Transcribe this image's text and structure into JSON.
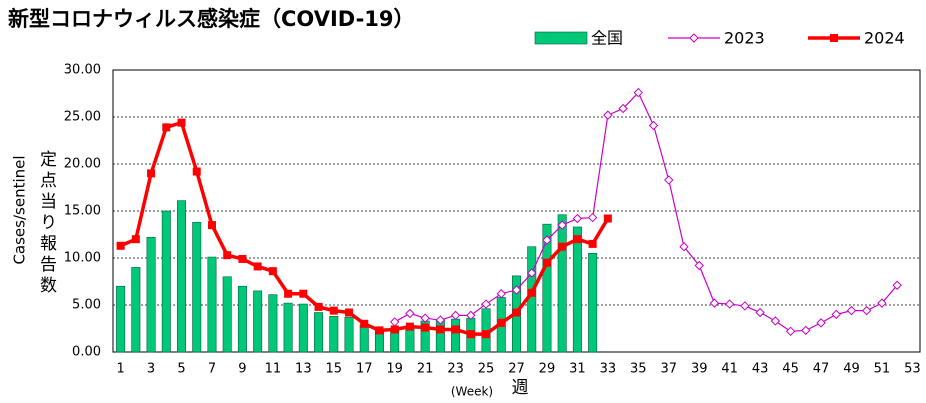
{
  "chart_data": {
    "type": "bar",
    "title": "新型コロナウィルス感染症（COVID-19）",
    "y_label": "Cases/sentinel",
    "y_label_ja": "定点当り報告数",
    "x_label": "(Week)",
    "x_label_ja": "週",
    "categories": [
      1,
      null,
      3,
      null,
      5,
      null,
      7,
      null,
      9,
      null,
      11,
      null,
      13,
      null,
      15,
      null,
      17,
      null,
      19,
      null,
      21,
      null,
      23,
      null,
      25,
      null,
      27,
      null,
      29,
      null,
      31,
      null,
      33,
      null,
      35,
      null,
      37,
      null,
      39,
      null,
      41,
      null,
      43,
      null,
      45,
      null,
      47,
      null,
      49,
      null,
      51,
      null,
      53
    ],
    "ylim": [
      0,
      30
    ],
    "yticks": [
      {
        "value": 0,
        "label": "0.00"
      },
      {
        "value": 5,
        "label": "5.00"
      },
      {
        "value": 10,
        "label": "10.00"
      },
      {
        "value": 15,
        "label": "15.00"
      },
      {
        "value": 20,
        "label": "20.00"
      },
      {
        "value": 25,
        "label": "25.00"
      },
      {
        "value": 30,
        "label": "30.00"
      }
    ],
    "grid": true,
    "legend": "top-right",
    "series": [
      {
        "name": "全国",
        "type": "bar",
        "color": "#00c878",
        "values": [
          7.0,
          9.0,
          12.2,
          15.0,
          16.1,
          13.8,
          10.1,
          8.0,
          7.0,
          6.5,
          6.1,
          5.2,
          5.1,
          4.2,
          3.8,
          3.7,
          2.9,
          2.3,
          2.3,
          2.8,
          3.3,
          3.4,
          3.5,
          3.6,
          4.6,
          5.8,
          8.1,
          11.2,
          13.6,
          14.6,
          13.3,
          10.5,
          null,
          null,
          null,
          null,
          null,
          null,
          null,
          null,
          null,
          null,
          null,
          null,
          null,
          null,
          null,
          null,
          null,
          null,
          null,
          null,
          null
        ]
      },
      {
        "name": "2023",
        "type": "line",
        "color": "#cc00cc",
        "values": [
          null,
          null,
          null,
          null,
          null,
          null,
          null,
          null,
          null,
          null,
          null,
          null,
          null,
          null,
          null,
          null,
          null,
          null,
          3.2,
          4.1,
          3.6,
          3.4,
          3.9,
          3.9,
          5.1,
          6.2,
          6.6,
          8.4,
          11.9,
          13.5,
          14.2,
          14.3,
          25.2,
          25.9,
          27.6,
          24.1,
          18.3,
          11.2,
          9.2,
          5.2,
          5.1,
          4.9,
          4.2,
          3.3,
          2.2,
          2.3,
          3.1,
          4.0,
          4.4,
          4.4,
          5.2,
          7.1,
          null
        ]
      },
      {
        "name": "2024",
        "type": "line",
        "color": "#ff0000",
        "values": [
          11.3,
          12.0,
          19.0,
          23.9,
          24.4,
          19.2,
          13.5,
          10.3,
          9.9,
          9.1,
          8.6,
          6.2,
          6.2,
          4.8,
          4.4,
          4.2,
          3.0,
          2.3,
          2.4,
          2.7,
          2.6,
          2.4,
          2.4,
          1.9,
          1.9,
          3.1,
          4.2,
          6.3,
          9.5,
          11.2,
          12.0,
          11.5,
          14.2,
          null,
          null,
          null,
          null,
          null,
          null,
          null,
          null,
          null,
          null,
          null,
          null,
          null,
          null,
          null,
          null,
          null,
          null,
          null,
          null
        ]
      }
    ]
  }
}
